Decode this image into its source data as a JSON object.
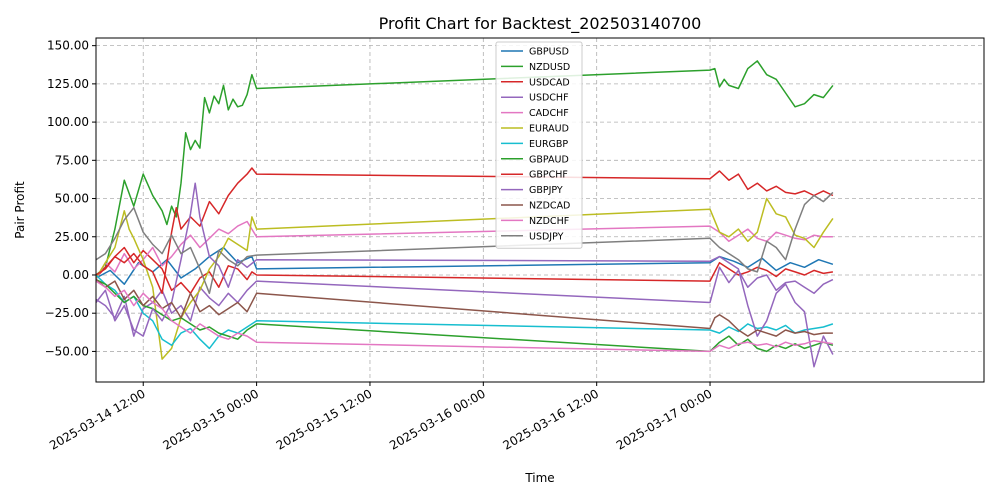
{
  "chart_data": {
    "type": "line",
    "title": "Profit Chart for Backtest_202503140700",
    "xlabel": "Time",
    "ylabel": "Pair Profit",
    "ylim": [
      -70,
      155
    ],
    "y_ticks": [
      -50,
      -25,
      0,
      25,
      50,
      75,
      100,
      125,
      150
    ],
    "y_tick_labels": [
      "−50.00",
      "−25.00",
      "0.00",
      "25.00",
      "50.00",
      "75.00",
      "100.00",
      "125.00",
      "150.00"
    ],
    "x_range_hours": [
      -5.0,
      89.0
    ],
    "x_unit": "hours since 2025-03-14 12:00",
    "x_ticks": [
      0,
      12,
      24,
      36,
      48,
      60
    ],
    "x_tick_labels": [
      "2025-03-14 12:00",
      "2025-03-15 00:00",
      "2025-03-15 12:00",
      "2025-03-16 00:00",
      "2025-03-16 12:00",
      "2025-03-17 00:00"
    ],
    "grid": true,
    "legend_position": "top-center",
    "series": [
      {
        "name": "GBPUSD",
        "color": "#1f77b4",
        "x": [
          -5,
          -3.5,
          -2,
          -0.5,
          1,
          2.5,
          4,
          5.5,
          7,
          8.5,
          10,
          11.5,
          12,
          60,
          61,
          62.5,
          64,
          65.5,
          67,
          68.5,
          70,
          71.5,
          73
        ],
        "y": [
          -2,
          3,
          -6,
          8,
          2,
          10,
          -2,
          4,
          12,
          18,
          8,
          12,
          4,
          8,
          12,
          9,
          5,
          11,
          3,
          8,
          5,
          10,
          7
        ]
      },
      {
        "name": "NZDUSD",
        "color": "#2ca02c",
        "x": [
          -5,
          -4,
          -3,
          -2,
          -1,
          0,
          1,
          2,
          2.5,
          3,
          3.5,
          4,
          4.5,
          5,
          5.5,
          6,
          6.5,
          7,
          7.5,
          8,
          8.5,
          9,
          9.5,
          10,
          10.5,
          11,
          11.5,
          12,
          60,
          60.5,
          61,
          61.5,
          62,
          63,
          64,
          65,
          66,
          67,
          68,
          69,
          70,
          71,
          72,
          73
        ],
        "y": [
          0,
          5,
          30,
          62,
          45,
          66,
          52,
          42,
          33,
          45,
          38,
          60,
          93,
          82,
          88,
          83,
          116,
          106,
          117,
          112,
          124,
          108,
          115,
          110,
          111,
          118,
          131,
          122,
          134,
          135,
          123,
          128,
          124,
          122,
          135,
          140,
          131,
          128,
          119,
          110,
          112,
          118,
          116,
          124
        ]
      },
      {
        "name": "USDCAD",
        "color": "#d62728",
        "x": [
          -5,
          -4,
          -3,
          -2,
          -1,
          0,
          1,
          2,
          3,
          4,
          5,
          6,
          7,
          8,
          9,
          10,
          11,
          11.5,
          12,
          60,
          61,
          62,
          63,
          64,
          65,
          66,
          67,
          68,
          69,
          70,
          71,
          72,
          73
        ],
        "y": [
          -2,
          5,
          12,
          18,
          8,
          16,
          10,
          4,
          -10,
          -5,
          -12,
          -2,
          2,
          -8,
          6,
          4,
          -3,
          2,
          0,
          -4,
          8,
          4,
          0,
          2,
          5,
          3,
          -1,
          4,
          2,
          0,
          3,
          1,
          2
        ]
      },
      {
        "name": "USDCHF",
        "color": "#9467bd",
        "x": [
          -5,
          -4,
          -3,
          -2,
          -1,
          0,
          1,
          2,
          3,
          4,
          5,
          6,
          7,
          8,
          9,
          10,
          11,
          12,
          60,
          61,
          62,
          63,
          64,
          65,
          66,
          67,
          68,
          69,
          70,
          71,
          72,
          73
        ],
        "y": [
          -16,
          -20,
          -28,
          -14,
          -40,
          -22,
          -18,
          -10,
          -25,
          -20,
          -30,
          -8,
          -15,
          -20,
          -12,
          -18,
          -10,
          -4,
          -18,
          5,
          -5,
          3,
          -8,
          -2,
          0,
          -10,
          -5,
          -4,
          -8,
          -12,
          -6,
          -3
        ]
      },
      {
        "name": "CADCHF",
        "color": "#e377c2",
        "x": [
          -5,
          -4,
          -3,
          -2,
          -1,
          0,
          1,
          2,
          3,
          4,
          5,
          6,
          7,
          8,
          9,
          10,
          11,
          12,
          60,
          61,
          62,
          63,
          64,
          65,
          66,
          67,
          68,
          69,
          70,
          71,
          72,
          73
        ],
        "y": [
          -3,
          8,
          2,
          14,
          4,
          10,
          18,
          6,
          12,
          20,
          26,
          18,
          24,
          30,
          27,
          32,
          35,
          25,
          32,
          28,
          22,
          26,
          30,
          24,
          22,
          28,
          26,
          24,
          23,
          26,
          25,
          25
        ]
      },
      {
        "name": "EURAUD",
        "color": "#bcbd22",
        "x": [
          -5,
          -4,
          -3,
          -2,
          -1.5,
          -1,
          0,
          1,
          2,
          3,
          4,
          5,
          6,
          7,
          8,
          9,
          10,
          11,
          11.5,
          12,
          60,
          61,
          62,
          63,
          64,
          65,
          66,
          67,
          68,
          69,
          70,
          71,
          72,
          73
        ],
        "y": [
          -2,
          8,
          18,
          42,
          30,
          24,
          10,
          -8,
          -55,
          -48,
          -28,
          -18,
          -10,
          4,
          12,
          24,
          20,
          16,
          38,
          30,
          43,
          28,
          25,
          30,
          22,
          28,
          50,
          40,
          38,
          26,
          24,
          18,
          28,
          37
        ]
      },
      {
        "name": "EURGBP",
        "color": "#17becf",
        "x": [
          -5,
          -4,
          -3,
          -2,
          -1,
          0,
          1,
          2,
          3,
          4,
          5,
          6,
          7,
          8,
          9,
          10,
          11,
          12,
          60,
          61,
          62,
          63,
          64,
          65,
          66,
          67,
          68,
          69,
          70,
          71,
          72,
          73
        ],
        "y": [
          0,
          -6,
          -10,
          -18,
          -14,
          -25,
          -30,
          -42,
          -46,
          -38,
          -35,
          -42,
          -48,
          -40,
          -36,
          -38,
          -34,
          -30,
          -36,
          -38,
          -34,
          -37,
          -32,
          -35,
          -34,
          -36,
          -33,
          -38,
          -36,
          -35,
          -34,
          -32
        ]
      },
      {
        "name": "GBPAUD",
        "color": "#2ca02c",
        "x": [
          -5,
          -4,
          -3,
          -2,
          -1,
          0,
          1,
          2,
          3,
          4,
          5,
          6,
          7,
          8,
          9,
          10,
          11,
          12,
          60,
          61,
          62,
          63,
          64,
          65,
          66,
          67,
          68,
          69,
          70,
          71,
          72,
          73
        ],
        "y": [
          -3,
          -6,
          -12,
          -18,
          -14,
          -20,
          -22,
          -26,
          -30,
          -28,
          -32,
          -36,
          -34,
          -38,
          -40,
          -42,
          -36,
          -32,
          -50,
          -44,
          -40,
          -46,
          -42,
          -48,
          -50,
          -46,
          -48,
          -45,
          -48,
          -46,
          -44,
          -46
        ]
      },
      {
        "name": "GBPCHF",
        "color": "#d62728",
        "x": [
          -5,
          -4,
          -3,
          -2,
          -1,
          0,
          1,
          2,
          3,
          3.5,
          4,
          5,
          6,
          7,
          8,
          9,
          10,
          11,
          11.5,
          12,
          60,
          61,
          62,
          63,
          64,
          65,
          66,
          67,
          68,
          69,
          70,
          71,
          72,
          73
        ],
        "y": [
          0,
          4,
          12,
          8,
          14,
          6,
          2,
          -12,
          28,
          44,
          30,
          38,
          32,
          48,
          40,
          52,
          60,
          66,
          70,
          66,
          63,
          68,
          62,
          66,
          56,
          60,
          55,
          58,
          54,
          53,
          55,
          52,
          55,
          52
        ]
      },
      {
        "name": "GBPJPY",
        "color": "#9467bd",
        "x": [
          -5,
          -4,
          -3,
          -2,
          -1,
          0,
          1,
          2,
          3,
          4,
          5,
          5.5,
          6,
          7,
          8,
          9,
          10,
          11,
          12,
          60,
          61,
          62,
          63,
          64,
          65,
          66,
          67,
          68,
          69,
          70,
          71,
          72,
          73
        ],
        "y": [
          -18,
          -10,
          -30,
          -20,
          -36,
          -40,
          -22,
          -30,
          -18,
          10,
          40,
          60,
          38,
          12,
          6,
          -8,
          10,
          5,
          10,
          9,
          12,
          8,
          4,
          -20,
          -40,
          -30,
          -12,
          -6,
          -18,
          -24,
          -60,
          -40,
          -52
        ]
      },
      {
        "name": "NZDCAD",
        "color": "#8c564b",
        "x": [
          -5,
          -4,
          -3,
          -2,
          -1,
          0,
          1,
          2,
          3,
          4,
          5,
          6,
          7,
          8,
          9,
          10,
          11,
          12,
          60,
          60.5,
          61,
          62,
          63,
          64,
          65,
          66,
          67,
          68,
          69,
          70,
          71,
          72,
          73
        ],
        "y": [
          -3,
          -8,
          -4,
          -16,
          -10,
          -20,
          -14,
          -22,
          -18,
          -28,
          -12,
          -24,
          -20,
          -26,
          -22,
          -18,
          -24,
          -12,
          -35,
          -28,
          -26,
          -30,
          -36,
          -40,
          -36,
          -38,
          -40,
          -36,
          -38,
          -37,
          -39,
          -38,
          -38
        ]
      },
      {
        "name": "NZDCHF",
        "color": "#e377c2",
        "x": [
          -5,
          -4,
          -3,
          -2,
          -1,
          0,
          1,
          2,
          3,
          4,
          5,
          6,
          7,
          8,
          9,
          10,
          11,
          12,
          60,
          61,
          62,
          63,
          64,
          65,
          66,
          67,
          68,
          69,
          70,
          71,
          72,
          73
        ],
        "y": [
          -4,
          -8,
          -14,
          -10,
          -20,
          -12,
          -18,
          -22,
          -30,
          -34,
          -38,
          -32,
          -36,
          -40,
          -42,
          -38,
          -40,
          -44,
          -50,
          -46,
          -48,
          -45,
          -44,
          -46,
          -45,
          -47,
          -44,
          -46,
          -45,
          -43,
          -44,
          -45
        ]
      },
      {
        "name": "USDJPY",
        "color": "#7f7f7f",
        "x": [
          -5,
          -4,
          -3,
          -2,
          -1,
          0,
          1,
          2,
          3,
          4,
          5,
          6,
          7,
          8,
          9,
          10,
          11,
          12,
          60,
          61,
          62,
          63,
          64,
          65,
          66,
          67,
          68,
          69,
          70,
          71,
          72,
          73
        ],
        "y": [
          10,
          14,
          24,
          36,
          44,
          28,
          20,
          14,
          26,
          14,
          18,
          4,
          -12,
          16,
          10,
          6,
          12,
          13,
          24,
          18,
          14,
          10,
          4,
          2,
          22,
          18,
          10,
          30,
          46,
          52,
          48,
          54
        ]
      }
    ]
  }
}
